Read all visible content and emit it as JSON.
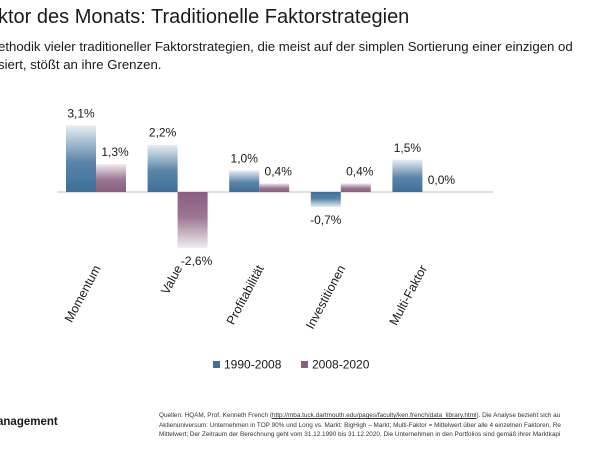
{
  "header": {
    "title": "ktor des Monats: Traditionelle Faktorstrategien",
    "subtitle_line1": "ethodik vieler traditioneller Faktorstrategien, die meist auf der simplen Sortierung einer einzigen od",
    "subtitle_line2": "siert, stößt an ihre Grenzen."
  },
  "footer": {
    "brand": "anagement",
    "source_prefix": "Quellen: HQAM, Prof. Kenneth French (",
    "source_url": "http://mba.tuck.dartmouth.edu/pages/faculty/ken.french/data_library.html",
    "source_suffix": "). Die Analyse bezieht sich au",
    "source_line2": "Aktienuniversum: Unternehmen in TOP 90% und Long vs. Markt: BigHigh – Markt; Multi-Faktor = Mittelwert über alle 4 einzelnen Faktoren, Re",
    "source_line3": "Mittelwert; Der Zeitraum der Berechnung geht vom 31.12.1990 bis 31.12.2020. Die Unternehmen in den Portfolios sind gemäß ihrer Marktkapi"
  },
  "colors": {
    "series1": "#3d6f99",
    "series2": "#8a5e80",
    "axis": "#bfbfbf"
  },
  "chart_data": {
    "type": "bar",
    "categories": [
      "Momentum",
      "Value",
      "Profitabilität",
      "Investitionen",
      "Multi-Faktor"
    ],
    "series": [
      {
        "name": "1990-2008",
        "values": [
          3.1,
          2.2,
          1.0,
          -0.7,
          1.5
        ],
        "labels": [
          "3,1%",
          "2,2%",
          "1,0%",
          "-0,7%",
          "1,5%"
        ]
      },
      {
        "name": "2008-2020",
        "values": [
          1.3,
          -2.6,
          0.4,
          0.4,
          0.0
        ],
        "labels": [
          "1,3%",
          "-2,6%",
          "0,4%",
          "0,4%",
          "0,0%"
        ]
      }
    ],
    "legend_position": "bottom",
    "grid": false
  }
}
